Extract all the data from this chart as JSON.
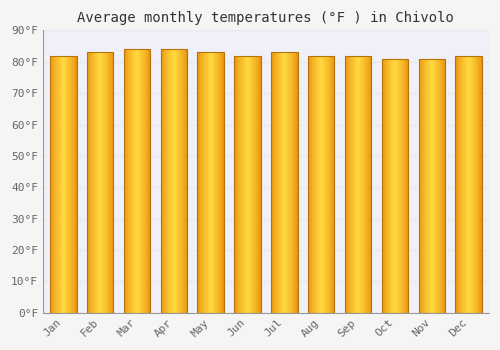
{
  "title": "Average monthly temperatures (°F ) in Chivolo",
  "months": [
    "Jan",
    "Feb",
    "Mar",
    "Apr",
    "May",
    "Jun",
    "Jul",
    "Aug",
    "Sep",
    "Oct",
    "Nov",
    "Dec"
  ],
  "values": [
    82,
    83,
    84,
    84,
    83,
    82,
    83,
    82,
    82,
    81,
    81,
    82
  ],
  "ylim": [
    0,
    90
  ],
  "yticks": [
    0,
    10,
    20,
    30,
    40,
    50,
    60,
    70,
    80,
    90
  ],
  "ytick_labels": [
    "0°F",
    "10°F",
    "20°F",
    "30°F",
    "40°F",
    "50°F",
    "60°F",
    "70°F",
    "80°F",
    "90°F"
  ],
  "bar_center_color": "#FFD050",
  "bar_edge_color": "#E8920A",
  "bar_border_color": "#B8720A",
  "background_color": "#f5f5f5",
  "plot_bg_color": "#f0f0f8",
  "grid_color": "#e8e8ee",
  "title_fontsize": 10,
  "tick_fontsize": 8
}
